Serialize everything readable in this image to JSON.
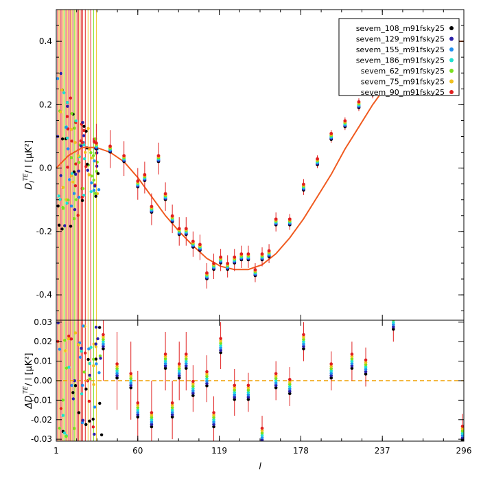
{
  "chart_data": [
    {
      "type": "scatter",
      "panel": "main",
      "ylabel_main": "D",
      "ylabel_sub": "l",
      "ylabel_sup": "TE",
      "ylabel_rest": "/ l [μK²]",
      "xlim": [
        1,
        296
      ],
      "ylim": [
        -0.48,
        0.5
      ],
      "yticks": [
        0.4,
        0.2,
        0.0,
        -0.2,
        -0.4
      ],
      "ytick_labels": [
        "0.4",
        "0.2",
        "0.0",
        "-0.2",
        "-0.4"
      ],
      "grid": false,
      "legend_position": "top-right",
      "series": [
        {
          "name": "sevem_108_m91fsky25",
          "color": "#000000"
        },
        {
          "name": "sevem_129_m91fsky25",
          "color": "#2a1fa8"
        },
        {
          "name": "sevem_155_m91fsky25",
          "color": "#1f8ef0"
        },
        {
          "name": "sevem_186_m91fsky25",
          "color": "#1fe0d0"
        },
        {
          "name": "sevem_62_m91fsky25",
          "color": "#7be01f"
        },
        {
          "name": "sevem_75_m91fsky25",
          "color": "#f0c01f"
        },
        {
          "name": "sevem_90_m91fsky25",
          "color": "#e01f1f"
        }
      ],
      "model_curve": {
        "color": "#f05a1f",
        "x": [
          1,
          10,
          20,
          30,
          40,
          50,
          60,
          70,
          80,
          90,
          100,
          110,
          120,
          130,
          140,
          150,
          160,
          170,
          180,
          190,
          200,
          210,
          220,
          230,
          240,
          250,
          260,
          270,
          280,
          290,
          296
        ],
        "y": [
          0.0,
          0.04,
          0.065,
          0.065,
          0.05,
          0.02,
          -0.03,
          -0.09,
          -0.15,
          -0.2,
          -0.245,
          -0.285,
          -0.31,
          -0.32,
          -0.32,
          -0.305,
          -0.27,
          -0.22,
          -0.16,
          -0.09,
          -0.02,
          0.06,
          0.13,
          0.2,
          0.26,
          0.31,
          0.35,
          0.375,
          0.39,
          0.4,
          0.4
        ]
      },
      "binned_points": {
        "x": [
          30,
          40,
          50,
          60,
          65,
          70,
          75,
          80,
          85,
          90,
          95,
          100,
          105,
          110,
          115,
          120,
          125,
          130,
          135,
          140,
          145,
          150,
          155,
          160,
          170,
          180,
          190,
          200,
          210,
          220,
          230,
          240,
          250,
          260,
          270,
          280,
          290
        ],
        "y": [
          0.07,
          0.06,
          0.03,
          -0.05,
          -0.03,
          -0.13,
          0.03,
          -0.09,
          -0.16,
          -0.2,
          -0.2,
          -0.24,
          -0.25,
          -0.34,
          -0.31,
          -0.29,
          -0.31,
          -0.29,
          -0.28,
          -0.28,
          -0.33,
          -0.28,
          -0.27,
          -0.17,
          -0.17,
          -0.06,
          0.02,
          0.1,
          0.14,
          0.2,
          0.24,
          0.29,
          0.32,
          0.36,
          0.37,
          0.39,
          0.37
        ],
        "err": [
          0.07,
          0.06,
          0.055,
          0.05,
          0.05,
          0.05,
          0.05,
          0.045,
          0.045,
          0.045,
          0.045,
          0.04,
          0.04,
          0.04,
          0.04,
          0.035,
          0.035,
          0.035,
          0.035,
          0.035,
          0.03,
          0.03,
          0.03,
          0.03,
          0.025,
          0.025,
          0.02,
          0.02,
          0.02,
          0.02,
          0.02,
          0.02,
          0.02,
          0.02,
          0.02,
          0.02,
          0.02
        ]
      }
    },
    {
      "type": "scatter",
      "panel": "residual",
      "ylabel_main": "ΔD",
      "ylabel_sub": "l",
      "ylabel_sup": "TE",
      "ylabel_rest": "/ l [μK²]",
      "xlabel": "l",
      "xlim": [
        1,
        296
      ],
      "xticks": [
        1,
        60,
        119,
        178,
        237,
        296
      ],
      "xtick_labels": [
        "1",
        "60",
        "119",
        "178",
        "237",
        "296"
      ],
      "ylim": [
        -0.031,
        0.031
      ],
      "yticks": [
        0.03,
        0.02,
        0.01,
        0.0,
        -0.01,
        -0.02,
        -0.03
      ],
      "ytick_labels": [
        "0.03",
        "0.02",
        "0.01",
        "0.00",
        "-0.01",
        "-0.02",
        "-0.03"
      ],
      "reference_line": {
        "y": 0.0,
        "style": "dashed",
        "color": "#f0a000"
      },
      "points": {
        "x": [
          35,
          45,
          55,
          60,
          70,
          80,
          85,
          90,
          95,
          100,
          110,
          115,
          120,
          130,
          140,
          150,
          160,
          170,
          180,
          200,
          215,
          225,
          245,
          295
        ],
        "y": [
          0.02,
          0.005,
          0.0,
          -0.015,
          -0.02,
          0.01,
          -0.015,
          0.005,
          0.01,
          -0.004,
          0.001,
          -0.02,
          0.018,
          -0.006,
          -0.006,
          -0.028,
          0.0,
          -0.003,
          0.02,
          0.005,
          0.01,
          0.007,
          0.03,
          -0.027
        ],
        "err": [
          0.02,
          0.02,
          0.02,
          0.02,
          0.02,
          0.015,
          0.015,
          0.015,
          0.015,
          0.012,
          0.012,
          0.012,
          0.012,
          0.012,
          0.01,
          0.01,
          0.01,
          0.01,
          0.01,
          0.01,
          0.01,
          0.01,
          0.01,
          0.01
        ]
      }
    }
  ]
}
